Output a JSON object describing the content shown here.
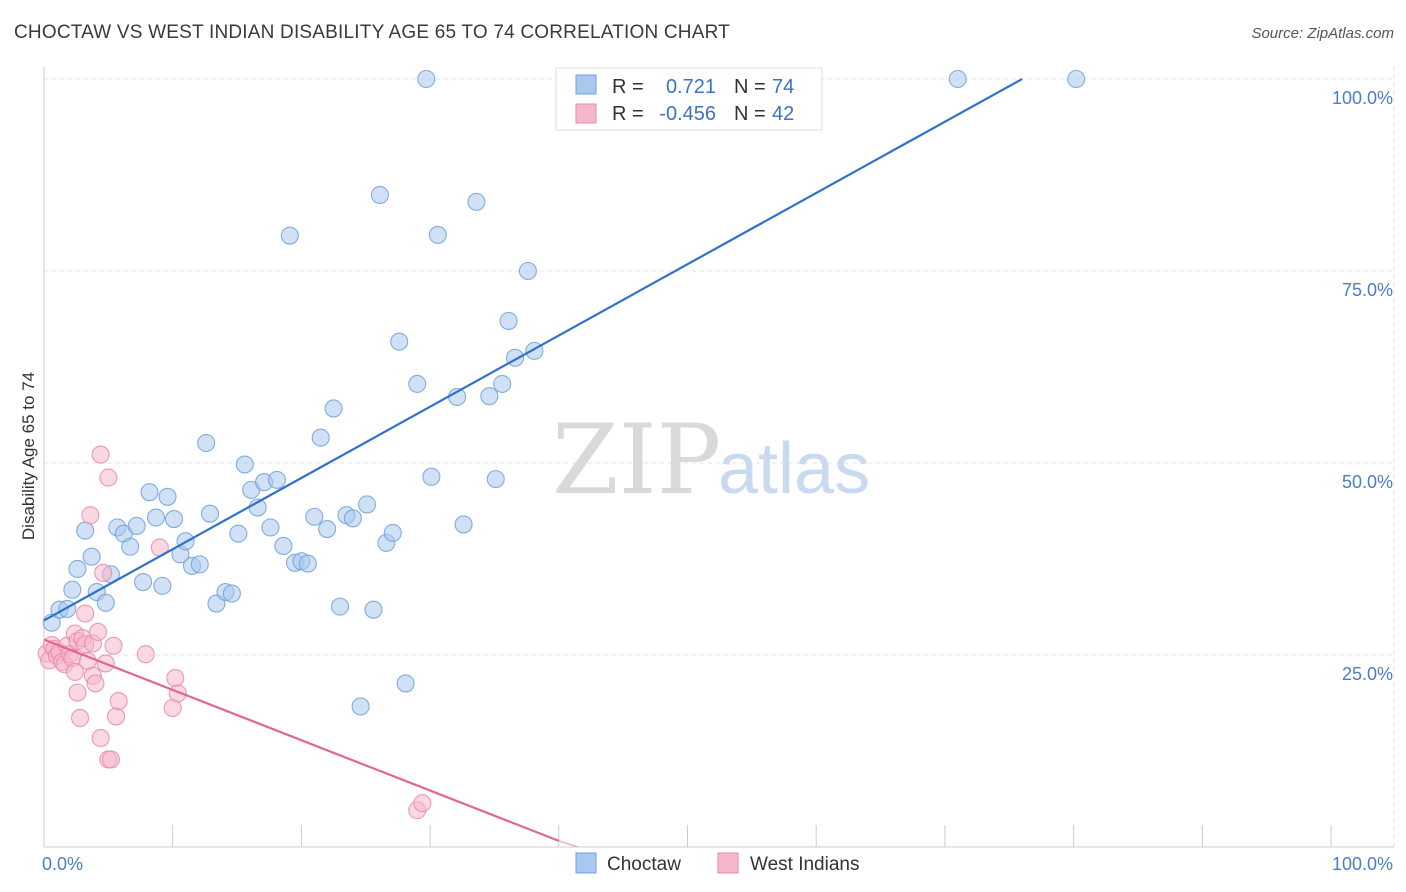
{
  "header": {
    "title": "CHOCTAW VS WEST INDIAN DISABILITY AGE 65 TO 74 CORRELATION CHART",
    "source": "Source: ZipAtlas.com"
  },
  "watermark": {
    "zip": "ZIP",
    "atlas": "atlas"
  },
  "legend_box": {
    "rows": [
      {
        "r_label": "R =",
        "r_value": "0.721",
        "n_label": "N =",
        "n_value": "74",
        "color": "#a9c8ef"
      },
      {
        "r_label": "R =",
        "r_value": "-0.456",
        "n_label": "N =",
        "n_value": "42",
        "color": "#f5b8cb"
      }
    ]
  },
  "bottom_legend": [
    {
      "label": "Choctaw",
      "color": "#a9c8ef"
    },
    {
      "label": "West Indians",
      "color": "#f5b8cb"
    }
  ],
  "chart_data": {
    "type": "scatter",
    "title": "CHOCTAW VS WEST INDIAN DISABILITY AGE 65 TO 74 CORRELATION CHART",
    "xlabel": "",
    "ylabel": "Disability Age 65 to 74",
    "xlim": [
      0,
      100
    ],
    "ylim": [
      0,
      100
    ],
    "x_tick_labels": [
      "0.0%",
      "100.0%"
    ],
    "y_tick_values": [
      25,
      50,
      75,
      100
    ],
    "y_tick_labels": [
      "25.0%",
      "50.0%",
      "75.0%",
      "100.0%"
    ],
    "grid": true,
    "legend_position": "top-center",
    "series": [
      {
        "name": "Choctaw",
        "color": "#6fa0dc",
        "fill": "#a9c8ef",
        "r": 0.721,
        "n": 74,
        "trend": {
          "x": [
            0,
            76
          ],
          "y": [
            29.5,
            100
          ]
        },
        "points": [
          [
            0.6,
            29.2
          ],
          [
            1.2,
            30.9
          ],
          [
            1.8,
            31.0
          ],
          [
            2.2,
            33.5
          ],
          [
            2.6,
            36.2
          ],
          [
            3.2,
            41.2
          ],
          [
            3.7,
            37.8
          ],
          [
            4.1,
            33.2
          ],
          [
            4.8,
            31.8
          ],
          [
            5.2,
            35.5
          ],
          [
            5.7,
            41.6
          ],
          [
            6.2,
            40.8
          ],
          [
            6.7,
            39.1
          ],
          [
            7.2,
            41.8
          ],
          [
            7.7,
            34.5
          ],
          [
            8.2,
            46.2
          ],
          [
            8.7,
            42.9
          ],
          [
            9.2,
            34.0
          ],
          [
            9.6,
            45.6
          ],
          [
            10.1,
            42.7
          ],
          [
            10.6,
            38.1
          ],
          [
            11.0,
            39.8
          ],
          [
            11.5,
            36.6
          ],
          [
            12.1,
            36.8
          ],
          [
            12.6,
            52.6
          ],
          [
            12.9,
            43.4
          ],
          [
            13.4,
            31.7
          ],
          [
            14.1,
            33.2
          ],
          [
            14.6,
            33.0
          ],
          [
            15.1,
            40.8
          ],
          [
            15.6,
            49.8
          ],
          [
            16.1,
            46.5
          ],
          [
            16.6,
            44.2
          ],
          [
            17.1,
            47.5
          ],
          [
            17.6,
            41.6
          ],
          [
            18.1,
            47.8
          ],
          [
            18.6,
            39.2
          ],
          [
            19.1,
            79.6
          ],
          [
            19.5,
            37.0
          ],
          [
            20.0,
            37.2
          ],
          [
            20.5,
            36.9
          ],
          [
            21.0,
            43.0
          ],
          [
            21.5,
            53.3
          ],
          [
            22.0,
            41.4
          ],
          [
            22.5,
            57.1
          ],
          [
            23.0,
            31.3
          ],
          [
            23.5,
            43.2
          ],
          [
            24.0,
            42.8
          ],
          [
            24.6,
            18.3
          ],
          [
            25.1,
            44.6
          ],
          [
            25.6,
            30.9
          ],
          [
            26.1,
            84.9
          ],
          [
            26.6,
            39.6
          ],
          [
            27.1,
            40.9
          ],
          [
            27.6,
            65.8
          ],
          [
            28.1,
            21.3
          ],
          [
            29.0,
            60.3
          ],
          [
            29.7,
            100.0
          ],
          [
            30.1,
            48.2
          ],
          [
            30.6,
            79.7
          ],
          [
            32.1,
            58.6
          ],
          [
            32.6,
            42.0
          ],
          [
            33.6,
            84.0
          ],
          [
            34.6,
            58.7
          ],
          [
            35.1,
            47.9
          ],
          [
            35.6,
            60.3
          ],
          [
            36.1,
            68.5
          ],
          [
            36.6,
            63.7
          ],
          [
            37.6,
            75.0
          ],
          [
            38.1,
            64.6
          ],
          [
            43.5,
            100.0
          ],
          [
            71.0,
            100.0
          ],
          [
            80.2,
            100.0
          ],
          [
            44.0,
            100.0
          ]
        ]
      },
      {
        "name": "West Indians",
        "color": "#ea8aa8",
        "fill": "#f5b8cb",
        "r": -0.456,
        "n": 42,
        "trend": {
          "x": [
            0,
            40
          ],
          "y": [
            27.0,
            0.8
          ]
        },
        "points": [
          [
            0.2,
            25.2
          ],
          [
            0.4,
            24.3
          ],
          [
            0.6,
            26.3
          ],
          [
            0.8,
            25.8
          ],
          [
            1.0,
            24.9
          ],
          [
            1.2,
            25.4
          ],
          [
            1.4,
            24.1
          ],
          [
            1.6,
            23.8
          ],
          [
            1.8,
            26.2
          ],
          [
            2.0,
            25.1
          ],
          [
            2.2,
            24.6
          ],
          [
            2.4,
            22.8
          ],
          [
            2.4,
            27.8
          ],
          [
            2.6,
            20.1
          ],
          [
            2.6,
            26.8
          ],
          [
            2.8,
            16.8
          ],
          [
            3.0,
            27.2
          ],
          [
            3.2,
            26.4
          ],
          [
            3.2,
            30.4
          ],
          [
            3.4,
            24.2
          ],
          [
            3.6,
            43.2
          ],
          [
            3.8,
            22.3
          ],
          [
            3.8,
            26.5
          ],
          [
            4.0,
            21.3
          ],
          [
            4.2,
            28.0
          ],
          [
            4.4,
            51.1
          ],
          [
            4.4,
            14.2
          ],
          [
            4.6,
            35.7
          ],
          [
            4.8,
            23.9
          ],
          [
            5.0,
            48.1
          ],
          [
            5.0,
            11.4
          ],
          [
            5.2,
            11.4
          ],
          [
            5.4,
            26.2
          ],
          [
            5.6,
            17.0
          ],
          [
            5.8,
            19.0
          ],
          [
            7.9,
            25.1
          ],
          [
            9.0,
            39.0
          ],
          [
            10.0,
            18.1
          ],
          [
            10.2,
            22.0
          ],
          [
            10.4,
            20.0
          ],
          [
            29.0,
            4.8
          ],
          [
            29.4,
            5.7
          ]
        ]
      }
    ]
  }
}
